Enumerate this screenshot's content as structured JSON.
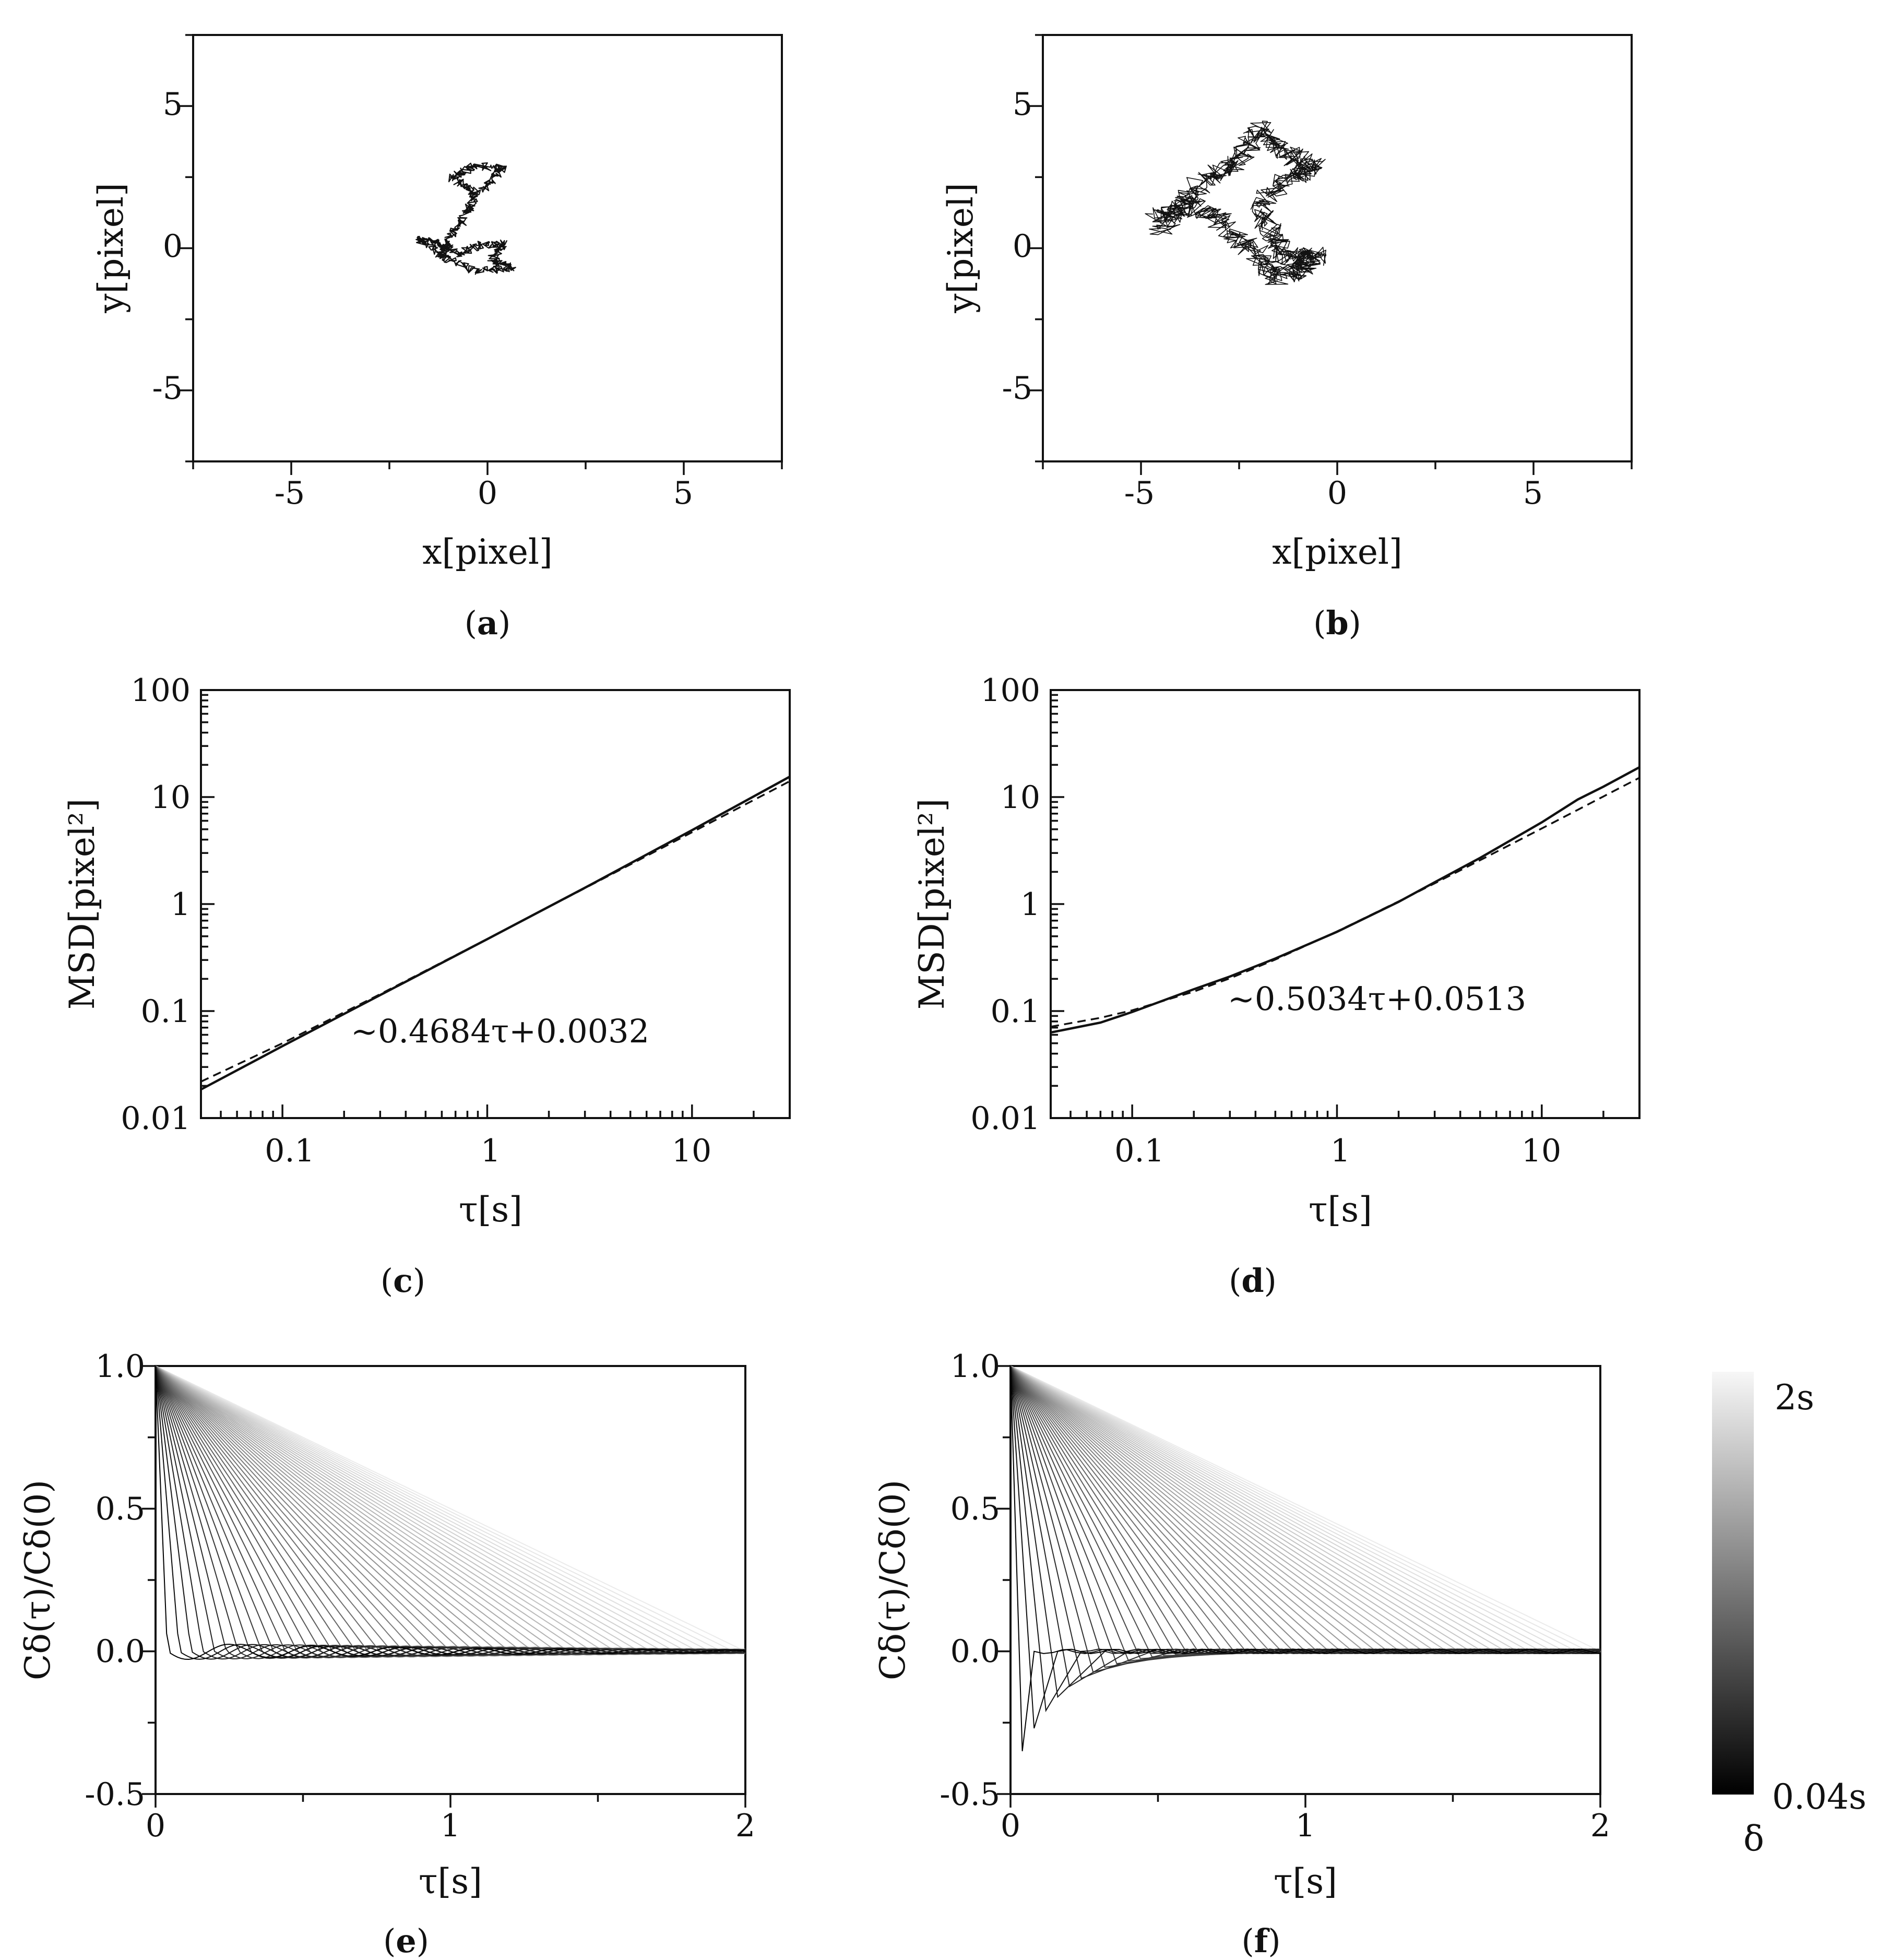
{
  "colors": {
    "ink": "#111111",
    "background": "#ffffff"
  },
  "chart_data": [
    {
      "id": "a",
      "type": "line",
      "panel_label": "a",
      "title": "",
      "xlabel": "x[pixel]",
      "ylabel": "y[pixel]",
      "xlim": [
        -7.5,
        7.5
      ],
      "ylim": [
        -7.5,
        7.5
      ],
      "xticks": [
        "-5",
        "0",
        "5"
      ],
      "yticks": [
        "-5",
        "0",
        "5"
      ],
      "grid": false,
      "legend": "none",
      "series": [
        {
          "style": "trajectory",
          "color": "#111111",
          "extent": {
            "x": [
              -2.2,
              1.0
            ],
            "y": [
              -1.3,
              3.0
            ]
          },
          "waypoints": [
            [
              -1.0,
              -0.3
            ],
            [
              -1.8,
              0.3
            ],
            [
              -1.2,
              0.2
            ],
            [
              -0.8,
              -0.2
            ],
            [
              -0.2,
              0.1
            ],
            [
              0.4,
              0.2
            ],
            [
              0.1,
              -0.4
            ],
            [
              0.6,
              -0.7
            ],
            [
              -0.3,
              -0.8
            ],
            [
              -1.2,
              -0.3
            ],
            [
              -0.9,
              0.5
            ],
            [
              -0.5,
              1.3
            ],
            [
              -0.3,
              2.0
            ],
            [
              -0.9,
              2.5
            ],
            [
              -0.4,
              2.9
            ],
            [
              0.4,
              2.8
            ],
            [
              -0.2,
              2.0
            ]
          ]
        }
      ]
    },
    {
      "id": "b",
      "type": "line",
      "panel_label": "b",
      "title": "",
      "xlabel": "x[pixel]",
      "ylabel": "y[pixel]",
      "xlim": [
        -7.5,
        7.5
      ],
      "ylim": [
        -7.5,
        7.5
      ],
      "xticks": [
        "-5",
        "0",
        "5"
      ],
      "yticks": [
        "-5",
        "0",
        "5"
      ],
      "grid": false,
      "legend": "none",
      "series": [
        {
          "style": "trajectory",
          "color": "#111111",
          "extent": {
            "x": [
              -5.0,
              0.0
            ],
            "y": [
              -1.7,
              4.6
            ]
          },
          "waypoints": [
            [
              -4.5,
              0.6
            ],
            [
              -4.0,
              1.5
            ],
            [
              -3.3,
              2.5
            ],
            [
              -2.5,
              3.0
            ],
            [
              -2.0,
              4.2
            ],
            [
              -1.4,
              3.4
            ],
            [
              -0.6,
              2.8
            ],
            [
              -1.2,
              2.5
            ],
            [
              -2.0,
              1.5
            ],
            [
              -1.6,
              0.3
            ],
            [
              -1.2,
              -0.4
            ],
            [
              -0.5,
              -0.2
            ],
            [
              -1.0,
              -0.8
            ],
            [
              -1.6,
              -1.0
            ],
            [
              -2.2,
              0.0
            ],
            [
              -3.0,
              1.0
            ],
            [
              -3.8,
              1.6
            ],
            [
              -4.6,
              1.0
            ]
          ]
        }
      ]
    },
    {
      "id": "c",
      "type": "line",
      "panel_label": "c",
      "title": "",
      "xlabel": "τ[s]",
      "ylabel": "MSD[pixel²]",
      "xscale": "log",
      "yscale": "log",
      "xlim": [
        0.04,
        30
      ],
      "ylim": [
        0.01,
        100
      ],
      "xticks": [
        "0.1",
        "1",
        "10"
      ],
      "yticks": [
        "0.01",
        "0.1",
        "1",
        "10",
        "100"
      ],
      "grid": false,
      "legend": "none",
      "annotation": "~0.4684τ+0.0032",
      "series": [
        {
          "style": "solid",
          "x": [
            0.04,
            0.1,
            0.3,
            1,
            3,
            10,
            30
          ],
          "y": [
            0.0185,
            0.047,
            0.141,
            0.47,
            1.42,
            4.9,
            15.5
          ]
        },
        {
          "style": "dashed",
          "x": [
            0.04,
            0.1,
            0.3,
            1,
            3,
            10,
            30
          ],
          "y": [
            0.0219,
            0.05,
            0.1437,
            0.4716,
            1.4084,
            4.687,
            14.055
          ]
        }
      ]
    },
    {
      "id": "d",
      "type": "line",
      "panel_label": "d",
      "title": "",
      "xlabel": "τ[s]",
      "ylabel": "MSD[pixel²]",
      "xscale": "log",
      "yscale": "log",
      "xlim": [
        0.04,
        30
      ],
      "ylim": [
        0.01,
        100
      ],
      "xticks": [
        "0.1",
        "1",
        "10"
      ],
      "yticks": [
        "0.01",
        "0.1",
        "1",
        "10",
        "100"
      ],
      "grid": false,
      "legend": "none",
      "annotation": "~0.5034τ+0.0513",
      "series": [
        {
          "style": "solid",
          "x": [
            0.04,
            0.07,
            0.1,
            0.2,
            0.3,
            0.5,
            1,
            2,
            3,
            5,
            10,
            15,
            20,
            30
          ],
          "y": [
            0.063,
            0.078,
            0.098,
            0.16,
            0.21,
            0.31,
            0.55,
            1.05,
            1.6,
            2.7,
            5.8,
            9.5,
            12.5,
            19.0
          ]
        },
        {
          "style": "dashed",
          "x": [
            0.04,
            0.07,
            0.1,
            0.2,
            0.3,
            0.5,
            1,
            2,
            3,
            5,
            10,
            15,
            20,
            30
          ],
          "y": [
            0.0714,
            0.0865,
            0.1016,
            0.152,
            0.2023,
            0.303,
            0.5547,
            1.058,
            1.5615,
            2.568,
            5.085,
            7.602,
            10.12,
            15.15
          ]
        }
      ]
    },
    {
      "id": "e",
      "type": "line",
      "panel_label": "e",
      "title": "",
      "xlabel": "τ[s]",
      "ylabel": "Cδ(τ)/Cδ(0)",
      "xlim": [
        0,
        2
      ],
      "ylim": [
        -0.5,
        1.0
      ],
      "xticks": [
        "0",
        "1",
        "2"
      ],
      "yticks": [
        "-0.5",
        "0.0",
        "0.5",
        "1.0"
      ],
      "grid": false,
      "legend": "none",
      "family": {
        "parameter": "δ",
        "delta_min": 0.04,
        "delta_max": 2.0,
        "delta_step": 0.04,
        "shape": "triangular decay from 1 at τ=0 to 0 at τ=δ",
        "oscillation_after_delta": {
          "amplitude": 0.03,
          "period": 0.28,
          "decay": 0.9
        },
        "shade_dark_at_min": "#000000",
        "shade_light_at_max": "#f2f2f2"
      }
    },
    {
      "id": "f",
      "type": "line",
      "panel_label": "f",
      "title": "",
      "xlabel": "τ[s]",
      "ylabel": "Cδ(τ)/Cδ(0)",
      "xlim": [
        0,
        2
      ],
      "ylim": [
        -0.5,
        1.0
      ],
      "xticks": [
        "0",
        "1",
        "2"
      ],
      "yticks": [
        "-0.5",
        "0.0",
        "0.5",
        "1.0"
      ],
      "grid": false,
      "legend": "none",
      "family": {
        "parameter": "δ",
        "delta_min": 0.04,
        "delta_max": 2.0,
        "delta_step": 0.04,
        "shape": "triangular decay from 1 at τ=0 to a negative dip at τ=δ, returning to 0 at τ=2δ",
        "dip_at_delta_min": -0.35,
        "dip_decay": 0.5,
        "shade_dark_at_min": "#000000",
        "shade_light_at_max": "#f2f2f2"
      }
    }
  ],
  "colorbar": {
    "top_label": "2s",
    "bottom_label": "0.04s",
    "symbol": "δ",
    "gradient": [
      "#000000",
      "#f7f7f7"
    ]
  }
}
